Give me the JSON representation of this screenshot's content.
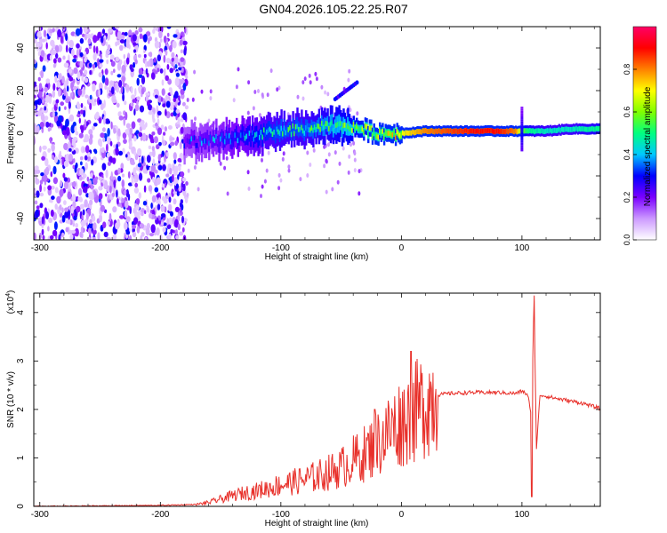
{
  "title": "GN04.2026.105.22.25.R07",
  "chart_data": [
    {
      "type": "heatmap",
      "panel": "spectrogram",
      "xlabel": "Height of straight line (km)",
      "ylabel": "Frequency (Hz)",
      "xlim": [
        -305,
        165
      ],
      "ylim": [
        -50,
        50
      ],
      "xticks": [
        -300,
        -200,
        -100,
        0,
        100
      ],
      "yticks": [
        -40,
        -20,
        0,
        20,
        40
      ],
      "colorbar": {
        "label": "Normalized spectral amplitude",
        "range": [
          0,
          1
        ],
        "ticks": [
          0.0,
          0.2,
          0.4,
          0.6,
          0.8
        ],
        "colormap": [
          "#ffffff",
          "#cc99ff",
          "#7a00ff",
          "#0000ff",
          "#00c8ff",
          "#00ff80",
          "#80ff00",
          "#ffff00",
          "#ff8000",
          "#ff0000",
          "#ff0066"
        ]
      },
      "ridge": {
        "x": [
          -180,
          -160,
          -140,
          -120,
          -100,
          -80,
          -60,
          -40,
          -20,
          0,
          20,
          40,
          60,
          80,
          95,
          100,
          105,
          120,
          140,
          165
        ],
        "freq": [
          -4,
          -4,
          -2,
          -1,
          1,
          2,
          3,
          3,
          0,
          0,
          1,
          1,
          1,
          1,
          1,
          1,
          1,
          1,
          2,
          2
        ],
        "amplitude": [
          0.25,
          0.3,
          0.35,
          0.4,
          0.45,
          0.45,
          0.5,
          0.55,
          0.6,
          0.7,
          0.8,
          0.85,
          0.9,
          0.9,
          0.8,
          0.6,
          0.5,
          0.45,
          0.45,
          0.5
        ]
      }
    },
    {
      "type": "line",
      "panel": "snr",
      "xlabel": "Height of straight line (km)",
      "ylabel": "SNR (10 * v/v)",
      "yscale_label": "(x10",
      "yscale_exp": "4",
      "xlim": [
        -305,
        165
      ],
      "ylim": [
        0,
        4.4
      ],
      "xticks": [
        -300,
        -200,
        -100,
        0,
        100
      ],
      "yticks": [
        0,
        1,
        2,
        3,
        4
      ],
      "color": "#e8302a",
      "series": [
        {
          "x": [
            -305,
            -250,
            -200,
            -170,
            -160,
            -150,
            -140,
            -130,
            -120,
            -110,
            -100,
            -90,
            -80,
            -70,
            -60,
            -50,
            -40,
            -30,
            -20,
            -10,
            0,
            10,
            20,
            30,
            40,
            60,
            80,
            95,
            100,
            105,
            108,
            110,
            112,
            115,
            130,
            150,
            165
          ],
          "y": [
            0.0,
            0.01,
            0.02,
            0.04,
            0.08,
            0.15,
            0.22,
            0.28,
            0.32,
            0.38,
            0.45,
            0.5,
            0.55,
            0.62,
            0.7,
            0.8,
            0.95,
            1.1,
            1.3,
            1.55,
            1.75,
            1.9,
            2.15,
            2.3,
            2.33,
            2.35,
            2.35,
            2.33,
            2.38,
            2.3,
            1.8,
            4.35,
            1.2,
            2.3,
            2.22,
            2.13,
            2.02
          ],
          "spikes": [
            {
              "x": -22,
              "y": 2.0
            },
            {
              "x": 8,
              "y": 3.2
            },
            {
              "x": 108,
              "y": 0.2
            },
            {
              "x": 110,
              "y": 4.35
            }
          ]
        }
      ]
    }
  ]
}
